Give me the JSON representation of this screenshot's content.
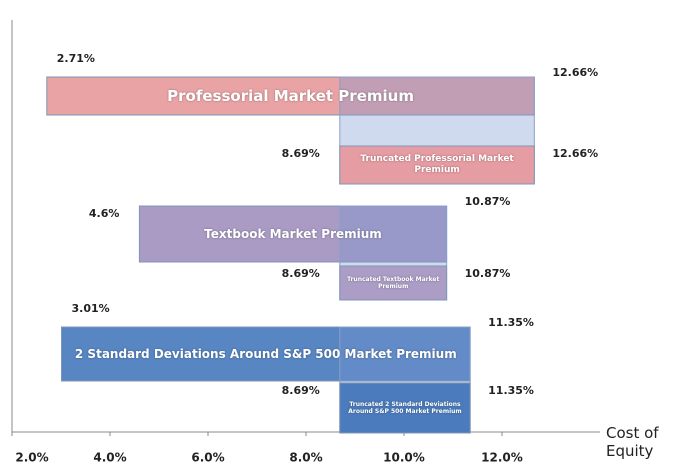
{
  "chart_data": {
    "type": "range_bar",
    "categories": [
      "Professorial Market Premium",
      "Truncated Professorial Market Premium",
      "Textbook Market Premium",
      "Truncated Textbook Market Premium",
      "2 Standard Deviations Around S&P 500 Market Premium",
      "Truncated 2 Standard Deviations Around S&P 500 Market Premium"
    ],
    "low": [
      2.71,
      8.69,
      4.6,
      8.69,
      3.01,
      8.69
    ],
    "low_labels": [
      "2.71%",
      "8.69%",
      "4.6%",
      "8.69%",
      "3.01%",
      "8.69%"
    ],
    "high": [
      12.66,
      12.66,
      10.87,
      10.87,
      11.35,
      11.35
    ],
    "high_labels": [
      "12.66%",
      "12.66%",
      "10.87%",
      "10.87%",
      "11.35%",
      "11.35%"
    ],
    "colors": [
      "#e9a3a5",
      "#e59ca2",
      "#a99bc4",
      "#ab9dc6",
      "#5886c2",
      "#4b7bbc"
    ],
    "x_label": "Cost of Equity",
    "xlim": [
      2,
      14
    ],
    "xticks": [
      {
        "value": 2,
        "label": "2.0%"
      },
      {
        "value": 4,
        "label": "4.0%"
      },
      {
        "value": 6,
        "label": "6.0%"
      },
      {
        "value": 8,
        "label": "8.0%"
      },
      {
        "value": 10,
        "label": "10.0%"
      },
      {
        "value": 12,
        "label": "12.0%"
      }
    ]
  }
}
